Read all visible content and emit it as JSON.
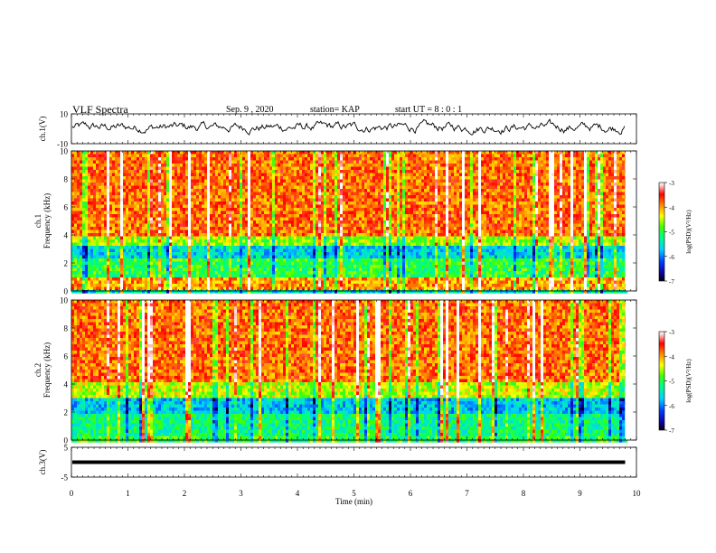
{
  "header": {
    "title": "VLF Spectra",
    "date": "Sep. 9 , 2020",
    "station": "station= KAP",
    "start_ut": "start  UT =   8 : 0  : 1"
  },
  "chart_data": [
    {
      "type": "line",
      "panel": "ch1-waveform",
      "ylabel": "ch.1(V)",
      "ylim": [
        -10,
        10
      ],
      "ytick_labels": [
        "10",
        "-10"
      ],
      "xlim": [
        0,
        10
      ],
      "x_end_data": 9.8,
      "series": [
        {
          "values_description_free": true,
          "approx_mean": 1,
          "approx_range": [
            -7,
            8
          ]
        }
      ]
    },
    {
      "type": "heatmap",
      "panel": "ch1-spectrogram",
      "ylabel": "ch.1\nFrequency (kHz)",
      "ylim": [
        0,
        10
      ],
      "ytick_labels": [
        "0",
        "2",
        "4",
        "6",
        "8",
        "10"
      ],
      "xlim": [
        0,
        10
      ],
      "x_end_data": 9.8,
      "bands": [
        {
          "freq_range": [
            0.0,
            0.2
          ],
          "level": -5.5
        },
        {
          "freq_range": [
            0.2,
            1.1
          ],
          "level": -4.0
        },
        {
          "freq_range": [
            1.1,
            2.5
          ],
          "level": -5.0
        },
        {
          "freq_range": [
            2.5,
            3.3
          ],
          "level": -5.6
        },
        {
          "freq_range": [
            3.3,
            4.0
          ],
          "level": -4.6
        },
        {
          "freq_range": [
            4.0,
            10.0
          ],
          "level": -3.8
        }
      ],
      "colorbar": {
        "label": "log(PSD)(V²/Hz)",
        "range": [
          -7,
          -3
        ],
        "ticks": [
          "-3",
          "-4",
          "-5",
          "-6",
          "-7"
        ]
      }
    },
    {
      "type": "heatmap",
      "panel": "ch2-spectrogram",
      "ylabel": "ch.2\nFrequency (kHz)",
      "ylim": [
        0,
        10
      ],
      "ytick_labels": [
        "0",
        "2",
        "4",
        "6",
        "8",
        "10"
      ],
      "xlim": [
        0,
        10
      ],
      "x_end_data": 9.8,
      "bands": [
        {
          "freq_range": [
            0.0,
            0.3
          ],
          "level": -5.0
        },
        {
          "freq_range": [
            0.3,
            2.0
          ],
          "level": -5.2
        },
        {
          "freq_range": [
            2.0,
            3.2
          ],
          "level": -5.7
        },
        {
          "freq_range": [
            3.2,
            4.2
          ],
          "level": -4.5
        },
        {
          "freq_range": [
            4.2,
            10.0
          ],
          "level": -3.8
        }
      ],
      "colorbar": {
        "label": "log(PSD)(V²/Hz)",
        "range": [
          -7,
          -3
        ],
        "ticks": [
          "-3",
          "-4",
          "-5",
          "-6",
          "-7"
        ]
      }
    },
    {
      "type": "line",
      "panel": "ch3-waveform",
      "ylabel": "ch.3(V)",
      "ylim": [
        -5,
        5
      ],
      "ytick_labels": [
        "5",
        "-5"
      ],
      "xlim": [
        0,
        10
      ],
      "x_end_data": 9.8,
      "series": [
        {
          "approx_mean": 0,
          "approx_range": [
            -0.6,
            0.6
          ]
        }
      ]
    }
  ],
  "xaxis": {
    "label": "Time (min)",
    "ticks": [
      "0",
      "1",
      "2",
      "3",
      "4",
      "5",
      "6",
      "7",
      "8",
      "9",
      "10"
    ]
  },
  "colors": {
    "axis": "#000000",
    "waveform": "#000000"
  }
}
